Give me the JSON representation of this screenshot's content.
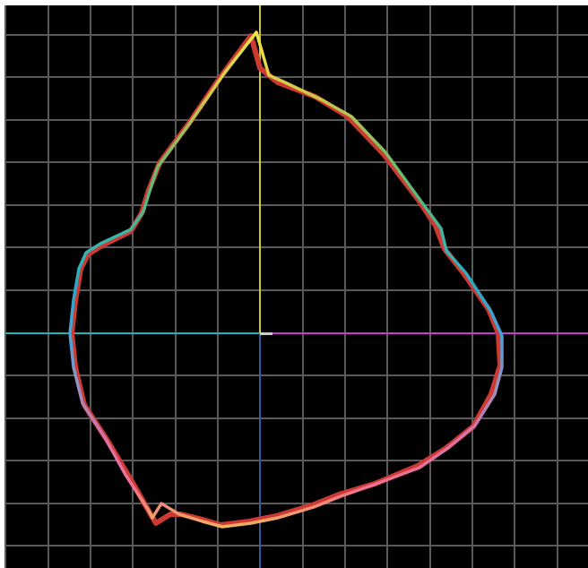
{
  "colors": {
    "page_background": "#ffffff",
    "plot_background": "#000000",
    "grid_line": "#5a5a5a",
    "axis_x_left": "#20b4b4",
    "axis_x_right": "#c83cc8",
    "axis_y_top": "#c8c832",
    "axis_y_bottom": "#325aa0",
    "origin_mark": "#cccccc",
    "reference_trace": "#cc3a32"
  },
  "traced_outline": {
    "gradient_stops": [
      {
        "offset": 0.0,
        "color": "#f0e646"
      },
      {
        "offset": 0.12,
        "color": "#d4c84a"
      },
      {
        "offset": 0.22,
        "color": "#8cbf5a"
      },
      {
        "offset": 0.32,
        "color": "#5ab87a"
      },
      {
        "offset": 0.42,
        "color": "#3cb4a8"
      },
      {
        "offset": 0.52,
        "color": "#2aa8c8"
      },
      {
        "offset": 0.62,
        "color": "#4ca0d8"
      },
      {
        "offset": 0.72,
        "color": "#9a90c0"
      },
      {
        "offset": 0.82,
        "color": "#d870a8"
      },
      {
        "offset": 0.92,
        "color": "#f07090"
      },
      {
        "offset": 1.0,
        "color": "#f0b060"
      }
    ]
  }
}
